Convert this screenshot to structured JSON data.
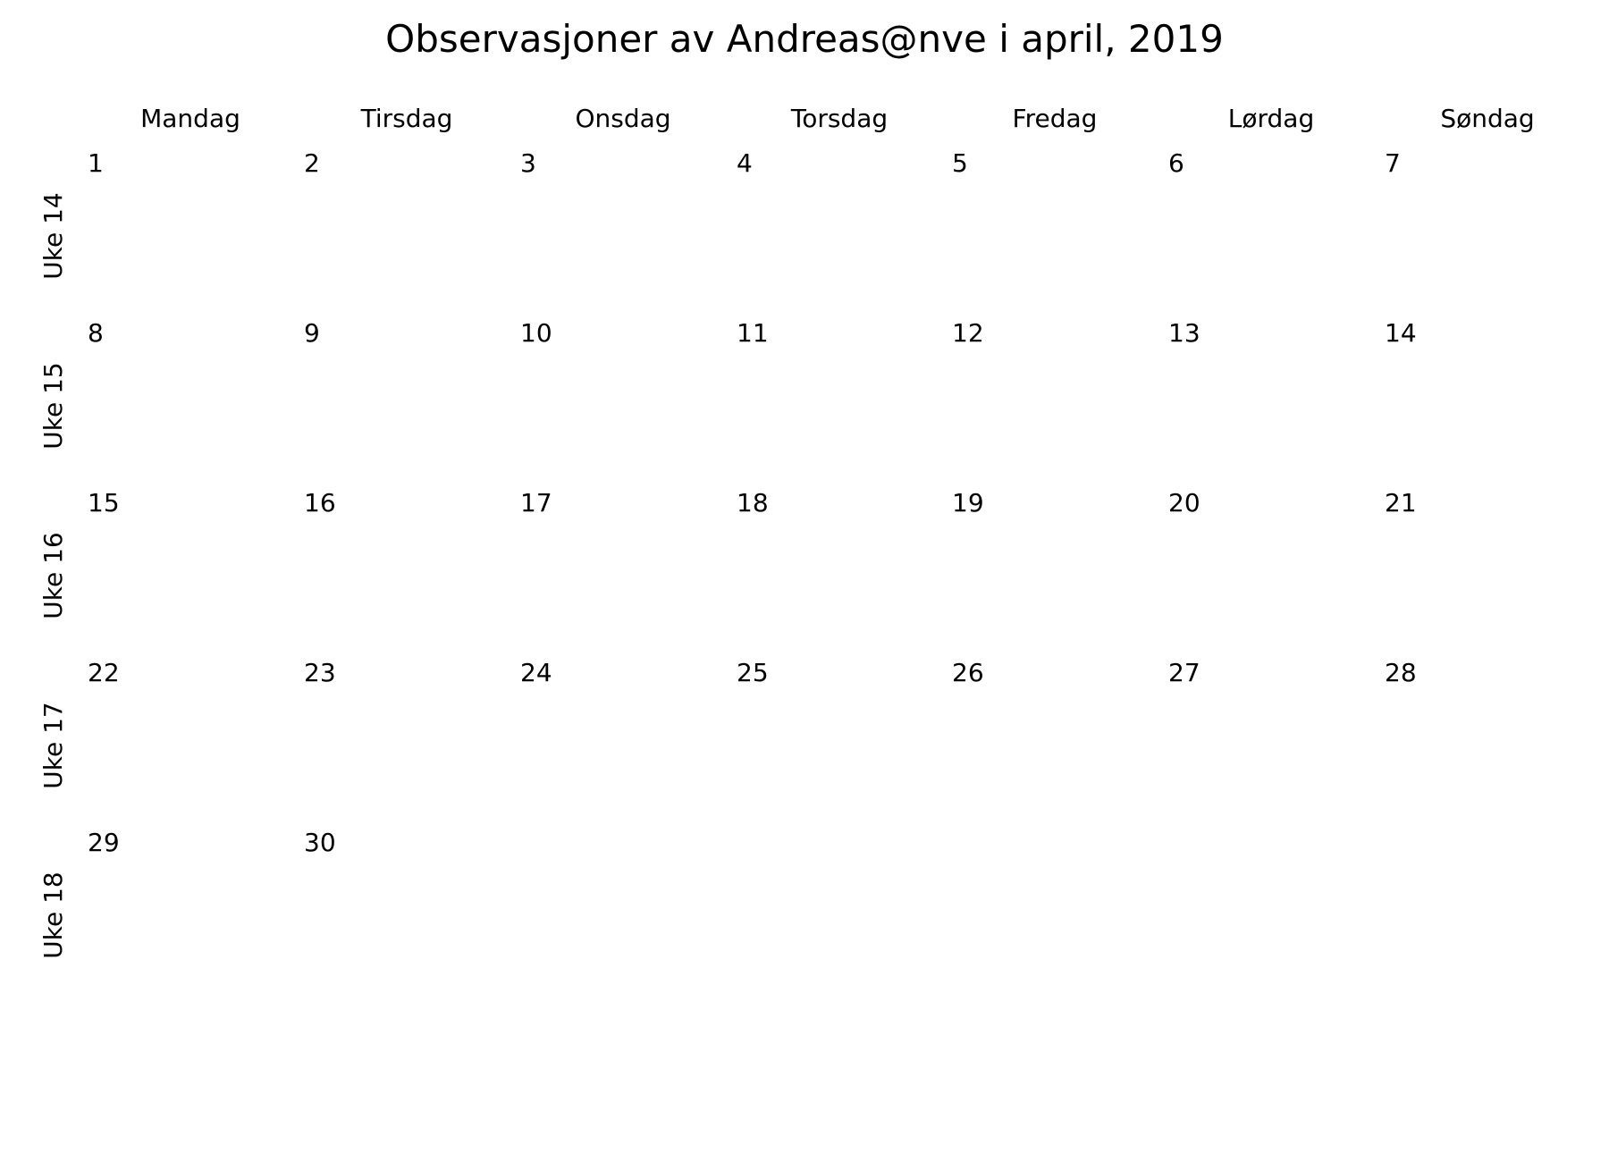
{
  "title": "Observasjoner av Andreas@nve i april, 2019",
  "weekdays": [
    "Mandag",
    "Tirsdag",
    "Onsdag",
    "Torsdag",
    "Fredag",
    "Lørdag",
    "Søndag"
  ],
  "weeks": [
    {
      "label": "Uke 14",
      "days": [
        "1",
        "2",
        "3",
        "4",
        "5",
        "6",
        "7"
      ]
    },
    {
      "label": "Uke 15",
      "days": [
        "8",
        "9",
        "10",
        "11",
        "12",
        "13",
        "14"
      ]
    },
    {
      "label": "Uke 16",
      "days": [
        "15",
        "16",
        "17",
        "18",
        "19",
        "20",
        "21"
      ]
    },
    {
      "label": "Uke 17",
      "days": [
        "22",
        "23",
        "24",
        "25",
        "26",
        "27",
        "28"
      ]
    },
    {
      "label": "Uke 18",
      "days": [
        "29",
        "30",
        "",
        "",
        "",
        "",
        ""
      ]
    }
  ]
}
